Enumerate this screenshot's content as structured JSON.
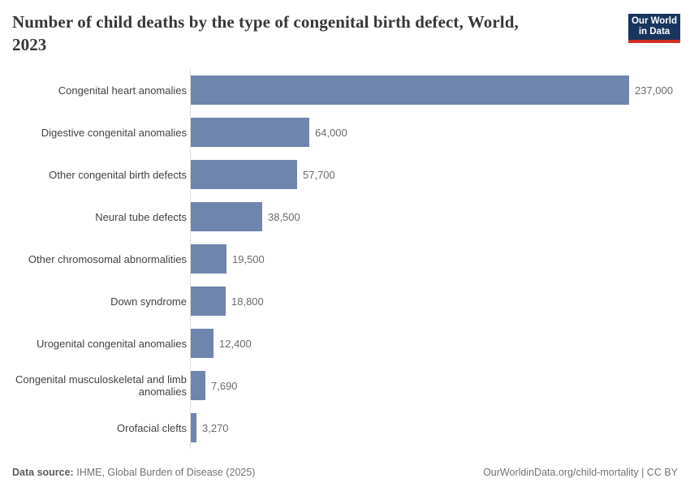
{
  "header": {
    "title_lines": {
      "line1": "Number of child deaths by the type of congenital birth defect, World,",
      "line2": "2023"
    },
    "logo": {
      "line1": "Our World",
      "line2": "in Data"
    }
  },
  "chart_data": {
    "type": "bar",
    "orientation": "horizontal",
    "title": "Number of child deaths by the type of congenital birth defect, World, 2023",
    "categories": [
      "Congenital heart anomalies",
      "Digestive congenital anomalies",
      "Other congenital birth defects",
      "Neural tube defects",
      "Other chromosomal abnormalities",
      "Down syndrome",
      "Urogenital congenital anomalies",
      "Congenital musculoskeletal and limb anomalies",
      "Orofacial clefts"
    ],
    "values": [
      237000,
      64000,
      57700,
      38500,
      19500,
      18800,
      12400,
      7690,
      3270
    ],
    "value_labels": [
      "237,000",
      "64,000",
      "57,700",
      "38,500",
      "19,500",
      "18,800",
      "12,400",
      "7,690",
      "3,270"
    ],
    "xlim": [
      0,
      237000
    ],
    "grid": false,
    "legend": false,
    "colors": {
      "bar": "#6e85ad",
      "axis_line": "#dcdcdc",
      "category_text": "#424242",
      "value_text": "#6b6b6b",
      "title_text": "#373737"
    }
  },
  "brand": {
    "logo_navy": "#18355e",
    "logo_red": "#cf2e24"
  },
  "footer": {
    "source_label": "Data source:",
    "source_text": "IHME, Global Burden of Disease (2025)",
    "link_text": "OurWorldinData.org/child-mortality",
    "separator": "|",
    "license": "CC BY"
  }
}
